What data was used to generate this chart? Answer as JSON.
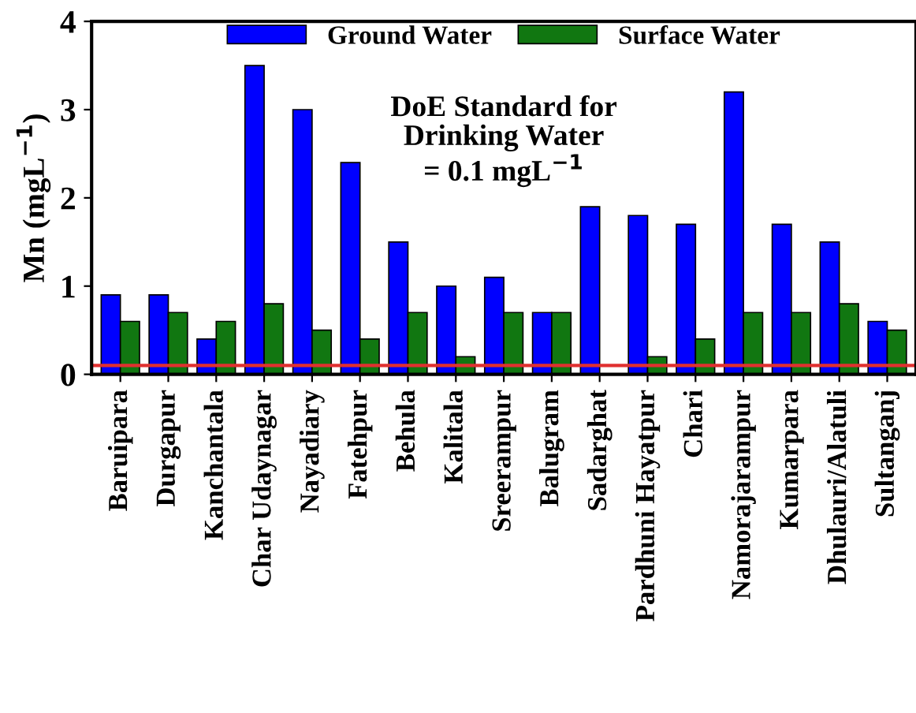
{
  "chart_data": {
    "type": "bar",
    "ylabel": "Mn (mgL$^{−1}$)",
    "categories": [
      "Baruipara",
      "Durgapur",
      "Kanchantala",
      "Char Udaynagar",
      "Nayadiary",
      "Fatehpur",
      "Behula",
      "Kalitala",
      "Sreerampur",
      "Balugram",
      "Sadarghat",
      "Pardhuni Hayatpur",
      "Chari",
      "Namorajarampur",
      "Kumarpara",
      "Dhulauri/Alatuli",
      "Sultanganj"
    ],
    "series": [
      {
        "name": "Ground Water",
        "color": "#0000ff",
        "values": [
          0.9,
          0.9,
          0.4,
          3.5,
          3.0,
          2.4,
          1.5,
          1.0,
          1.1,
          0.7,
          1.9,
          1.8,
          1.7,
          3.2,
          1.7,
          1.5,
          0.6
        ]
      },
      {
        "name": "Surface Water",
        "color": "#117711",
        "values": [
          0.6,
          0.7,
          0.6,
          0.8,
          0.5,
          0.4,
          0.7,
          0.2,
          0.7,
          0.7,
          null,
          0.2,
          0.4,
          0.7,
          0.7,
          0.8,
          0.5
        ]
      }
    ],
    "ylim": [
      0,
      4
    ],
    "yticks": [
      0,
      1,
      2,
      3,
      4
    ],
    "ref_lines": [
      {
        "axis": "y",
        "value": 0.1,
        "color": "#e03030"
      }
    ],
    "annotations": [
      "DoE Standard for\nDrinking Water\n= 0.1 mgL$^{−1}$"
    ],
    "legend": "top",
    "grid": false
  }
}
